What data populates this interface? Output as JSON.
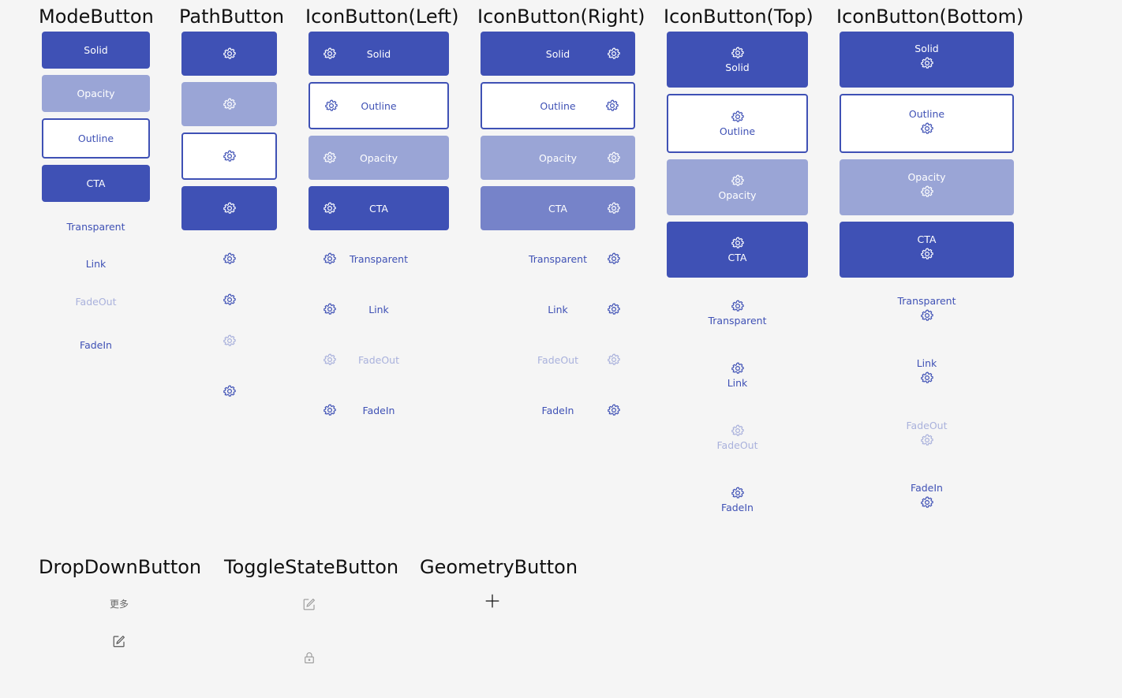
{
  "colors": {
    "accent": "#3f51b5",
    "opacity": "#9aa5d6",
    "cta_light": "#7683c9",
    "fadeout": "#a9b1dc",
    "background": "#f5f5f5"
  },
  "headings": {
    "mode": "ModeButton",
    "path": "PathButton",
    "icon_left": "IconButton(Left)",
    "icon_right": "IconButton(Right)",
    "icon_top": "IconButton(Top)",
    "icon_bottom": "IconButton(Bottom)",
    "dropdown": "DropDownButton",
    "toggle": "ToggleStateButton",
    "geometry": "GeometryButton"
  },
  "labels": {
    "solid": "Solid",
    "opacity": "Opacity",
    "outline": "Outline",
    "cta": "CTA",
    "transparent": "Transparent",
    "link": "Link",
    "fadeout": "FadeOut",
    "fadein": "FadeIn"
  },
  "icons": {
    "gear": "gear-icon",
    "edit": "edit-icon",
    "lock": "lock-icon",
    "plus": "plus-icon"
  },
  "dropdown": {
    "more_label": "更多"
  }
}
